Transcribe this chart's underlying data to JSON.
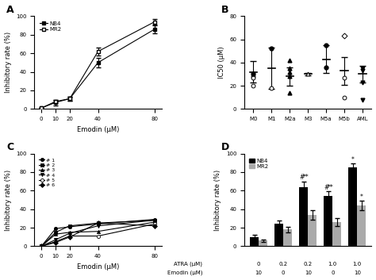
{
  "A": {
    "x": [
      0,
      10,
      20,
      40,
      80
    ],
    "NB4_y": [
      1,
      7,
      11,
      50,
      86
    ],
    "NB4_err": [
      0.5,
      3,
      2,
      5,
      4
    ],
    "MR2_y": [
      1,
      8,
      11,
      62,
      94
    ],
    "MR2_err": [
      0.5,
      2,
      2,
      4,
      3
    ],
    "xlabel": "Emodin (μM)",
    "ylabel": "Inhibitory rate (%)",
    "ylim": [
      0,
      100
    ],
    "yticks": [
      0,
      20,
      40,
      60,
      80,
      100
    ]
  },
  "B": {
    "categories": [
      "M0",
      "M1",
      "M2a",
      "M3",
      "M5a",
      "M5b",
      "AML"
    ],
    "mean": [
      32,
      35,
      28,
      30,
      43,
      33,
      30
    ],
    "sd": [
      9,
      18,
      8,
      1,
      12,
      12,
      7
    ],
    "ylabel": "IC50 (μM)",
    "ylim": [
      0,
      80
    ],
    "yticks": [
      0,
      20,
      40,
      60,
      80
    ]
  },
  "C": {
    "x": [
      0,
      10,
      20,
      40,
      80
    ],
    "lines": [
      [
        0,
        19,
        21,
        24,
        29
      ],
      [
        0,
        15,
        22,
        25,
        28
      ],
      [
        0,
        13,
        15,
        16,
        26
      ],
      [
        0,
        7,
        14,
        22,
        28
      ],
      [
        0,
        5,
        11,
        11,
        24
      ],
      [
        0,
        4,
        10,
        25,
        22
      ]
    ],
    "labels": [
      "# 1",
      "# 2",
      "# 3",
      "# 4",
      "# 5",
      "# 6"
    ],
    "markers": [
      "o",
      "s",
      "^",
      "v",
      "o",
      "D"
    ],
    "filled": [
      true,
      true,
      true,
      true,
      false,
      true
    ],
    "xlabel": "Emodin (μM)",
    "ylabel": "Inhibitory rate (%)",
    "ylim": [
      0,
      100
    ],
    "yticks": [
      0,
      20,
      40,
      60,
      80,
      100
    ]
  },
  "D": {
    "atra_vals": [
      "0",
      "0.2",
      "0.2",
      "1.0",
      "1.0"
    ],
    "emod_vals": [
      "10",
      "0",
      "10",
      "0",
      "10"
    ],
    "NB4_y": [
      10,
      24,
      64,
      54,
      85
    ],
    "NB4_err": [
      2,
      4,
      6,
      5,
      4
    ],
    "MR2_y": [
      6,
      18,
      34,
      26,
      44
    ],
    "MR2_err": [
      1,
      3,
      5,
      4,
      5
    ],
    "xlabel_top": "ATRA (μM)",
    "xlabel_bot": "Emodin (μM)",
    "ylabel": "Inhibitory rate (%)",
    "ylim": [
      0,
      100
    ],
    "yticks": [
      0,
      20,
      40,
      60,
      80,
      100
    ],
    "annot_hash_star_NB4": [
      2,
      3
    ],
    "annot_star_NB4": [
      4
    ],
    "annot_star_MR2": [
      4
    ]
  }
}
